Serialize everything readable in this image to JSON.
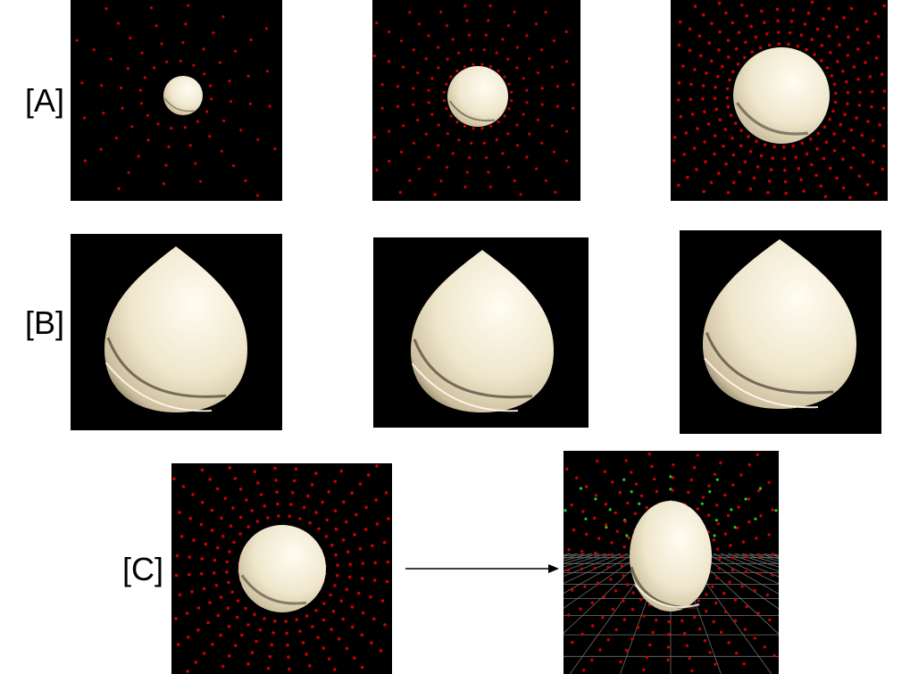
{
  "rows": {
    "a": {
      "label": "[A]"
    },
    "b": {
      "label": "[B]"
    },
    "c": {
      "label": "[C]"
    }
  },
  "colors": {
    "background": "#000000",
    "surface": "#efe6cc",
    "points_red": "#cc0000",
    "points_green": "#22cc22",
    "grid": "#8c8c8c",
    "arrow": "#000000"
  }
}
